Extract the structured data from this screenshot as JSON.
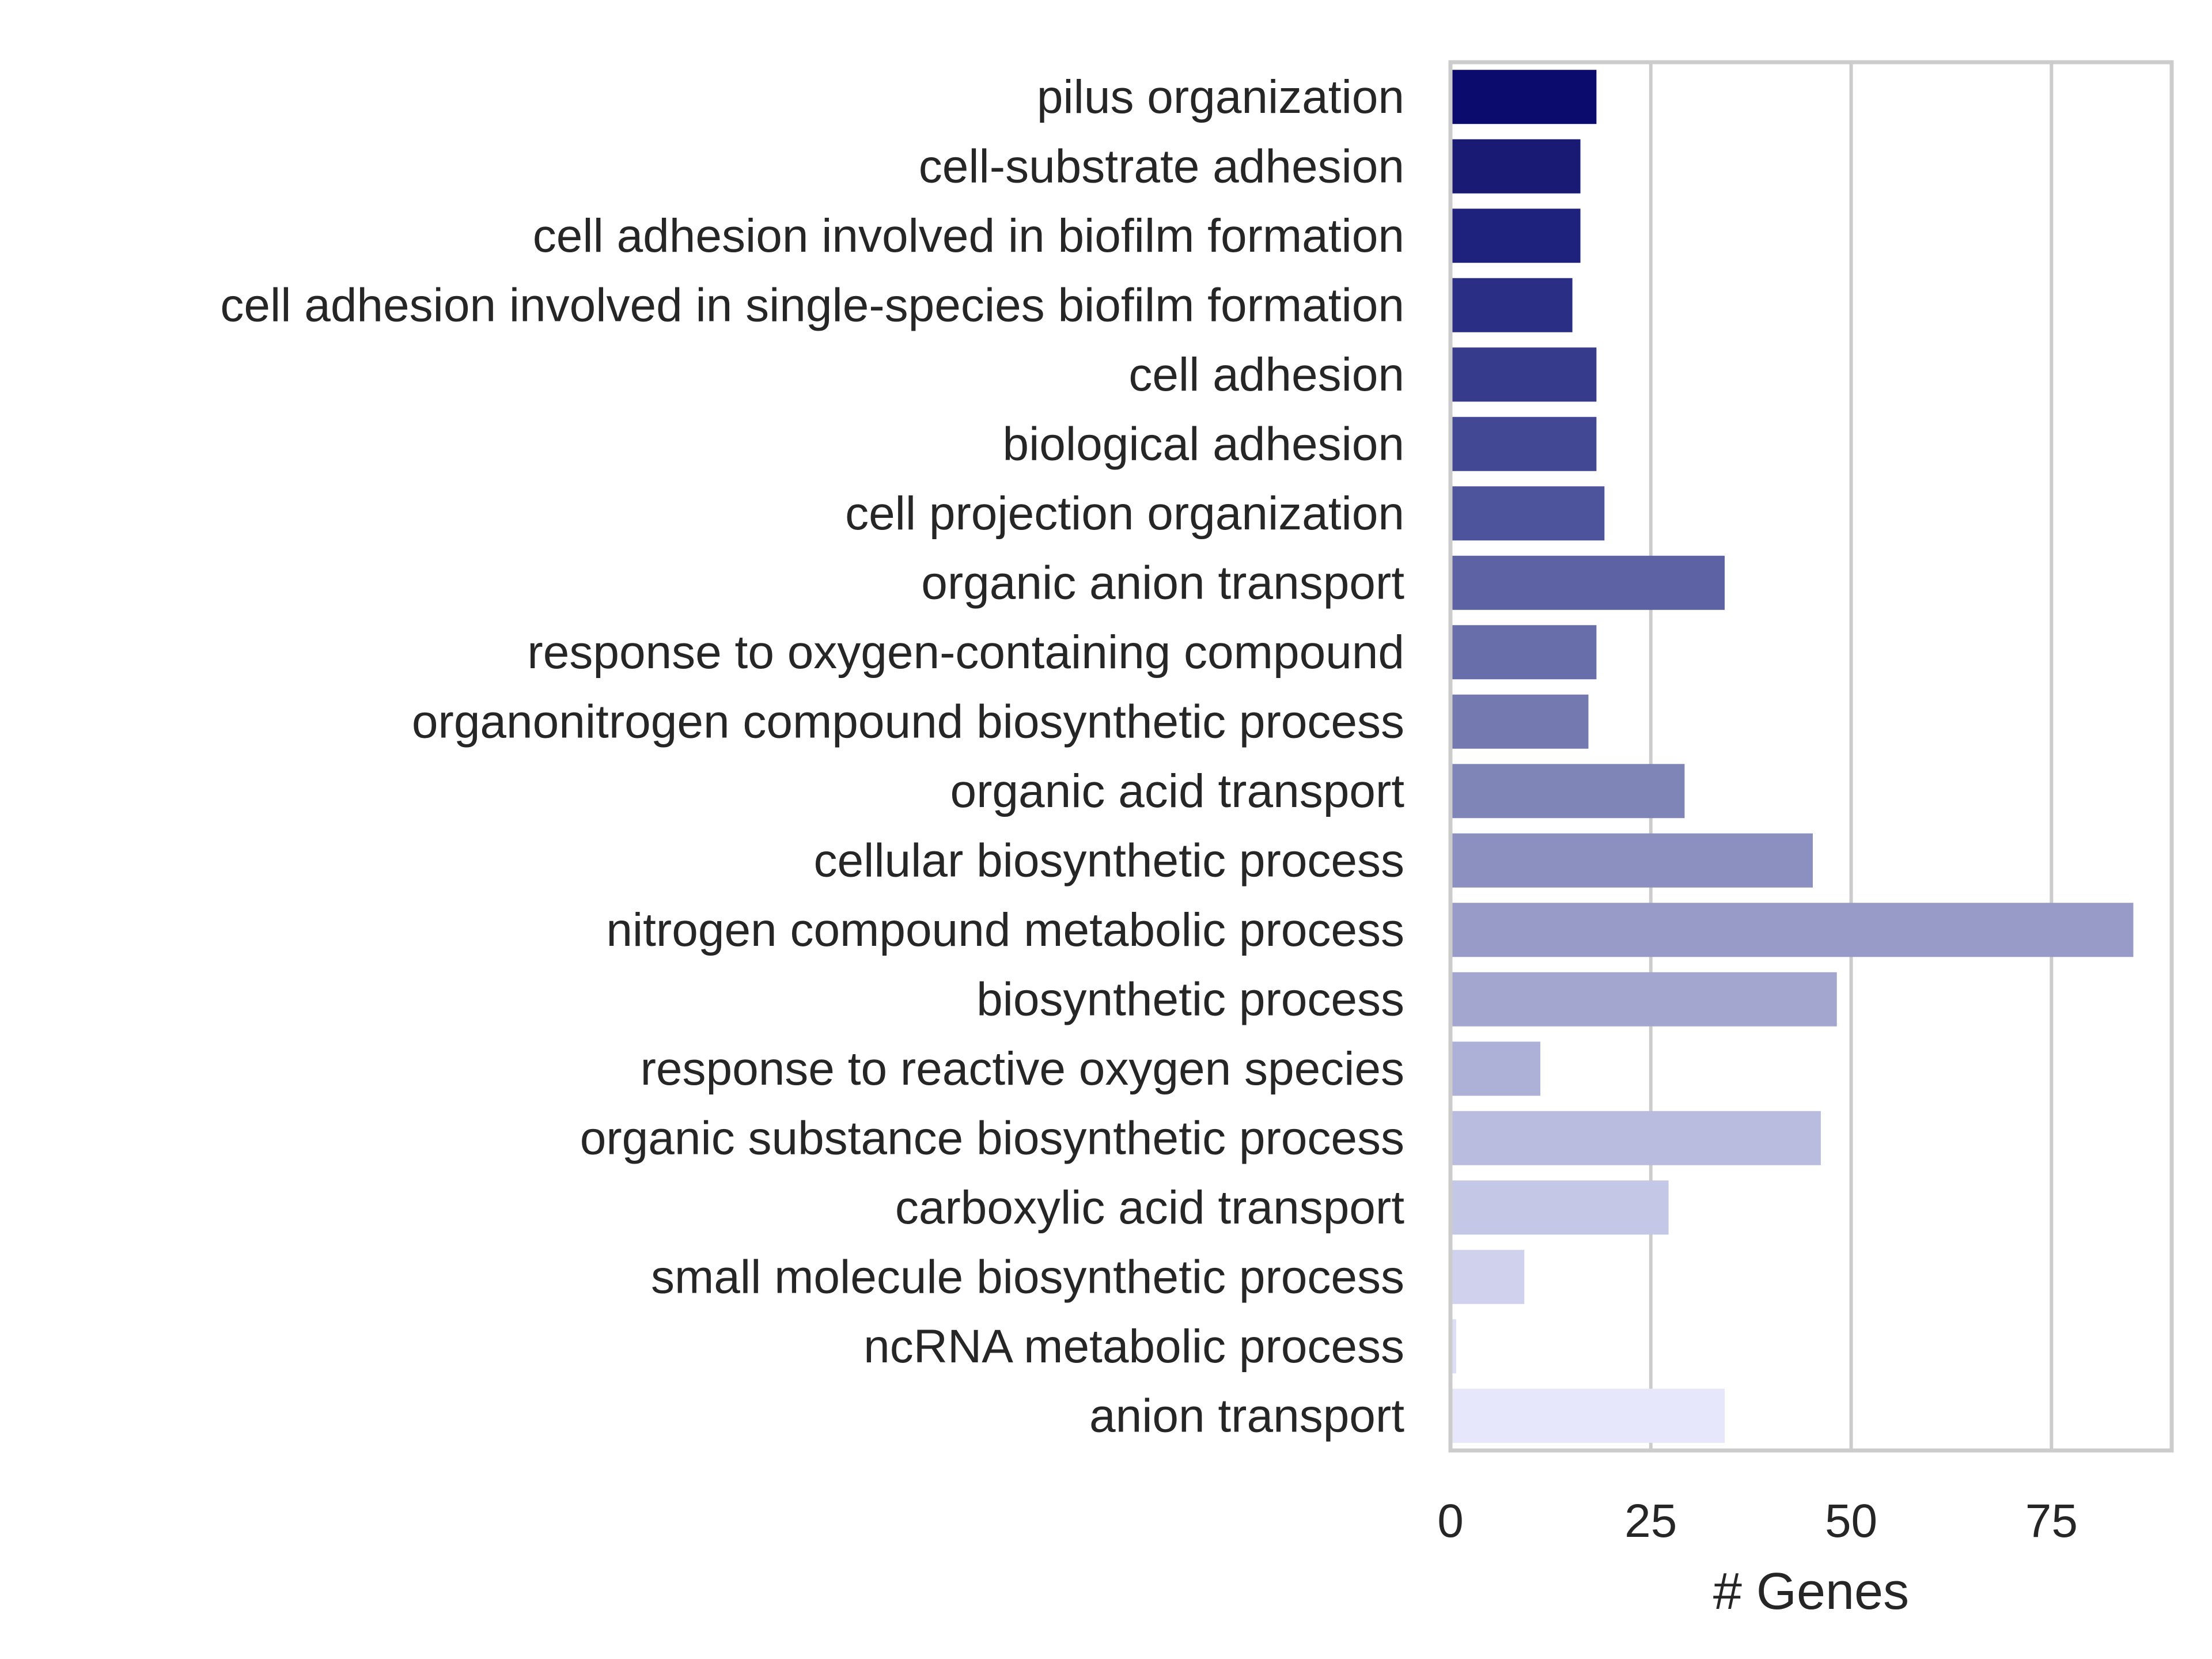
{
  "chart_data": {
    "type": "bar",
    "orientation": "horizontal",
    "title": "",
    "xlabel": "# Genes",
    "ylabel": "",
    "xlim": [
      0,
      90
    ],
    "xticks": [
      0,
      25,
      50,
      75
    ],
    "grid": "vertical",
    "legend": "none",
    "categories": [
      "pilus organization",
      "cell-substrate adhesion",
      "cell adhesion involved in biofilm formation",
      "cell adhesion involved in single-species biofilm formation",
      "cell adhesion",
      "biological adhesion",
      "cell projection organization",
      "organic anion transport",
      "response to oxygen-containing compound",
      "organonitrogen compound biosynthetic process",
      "organic acid transport",
      "cellular biosynthetic process",
      "nitrogen compound metabolic process",
      "biosynthetic process",
      "response to reactive oxygen species",
      "organic substance biosynthetic process",
      "carboxylic acid transport",
      "small molecule biosynthetic process",
      "ncRNA metabolic process",
      "anion transport"
    ],
    "values": [
      18,
      16,
      16,
      15,
      18,
      18,
      19,
      34,
      18,
      17,
      29,
      45,
      85,
      48,
      11,
      46,
      27,
      9,
      0.5,
      34
    ],
    "colors": [
      "#0b0b6e",
      "#181a74",
      "#1f227c",
      "#2a2e84",
      "#363b8c",
      "#424894",
      "#4d549b",
      "#5c62a3",
      "#686ea9",
      "#7479b0",
      "#8085b8",
      "#8c90c0",
      "#989bc8",
      "#a3a6cf",
      "#aeb1d7",
      "#babcdf",
      "#c5c7e6",
      "#d0d2ed",
      "#dcdef4",
      "#e6e7fa"
    ]
  }
}
